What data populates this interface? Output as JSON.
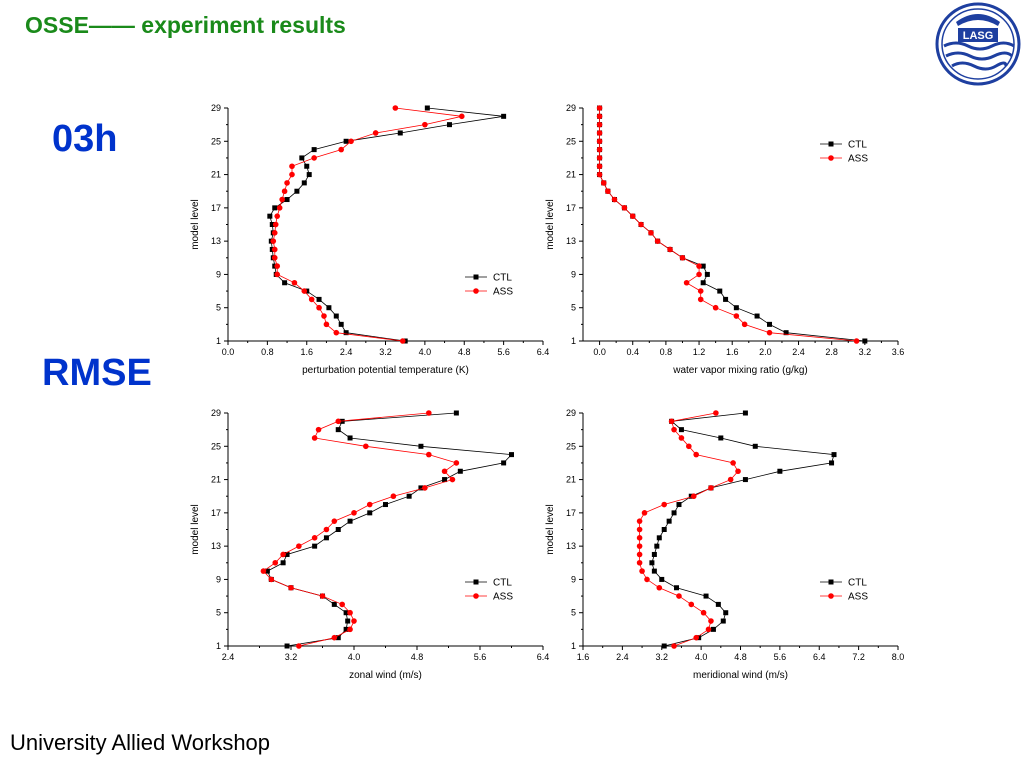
{
  "header": {
    "title": "OSSE—— experiment results"
  },
  "labels": {
    "time": "03h",
    "metric": "RMSE"
  },
  "footer": {
    "text": "University Allied Workshop"
  },
  "logo": {
    "text": "LASG"
  },
  "colors": {
    "title": "#1a8a1a",
    "label": "#0033cc",
    "ctl": "#000000",
    "ass": "#ff0000"
  },
  "chart_data": [
    {
      "type": "line",
      "xlabel": "perturbation potential temperature (K)",
      "ylabel": "model level",
      "xlim": [
        0.0,
        6.4
      ],
      "xticks": [
        "0.0",
        "0.8",
        "1.6",
        "2.4",
        "3.2",
        "4.0",
        "4.8",
        "5.6",
        "6.4"
      ],
      "ylim": [
        1,
        29
      ],
      "yticks": [
        "1",
        "5",
        "9",
        "13",
        "17",
        "21",
        "25",
        "29"
      ],
      "legend": "bottom-right",
      "y": [
        1,
        2,
        3,
        4,
        5,
        6,
        7,
        8,
        9,
        10,
        11,
        12,
        13,
        14,
        15,
        16,
        17,
        18,
        19,
        20,
        21,
        22,
        23,
        24,
        25,
        26,
        27,
        28,
        29
      ],
      "series": [
        {
          "name": "CTL",
          "marker": "square",
          "color": "#000000",
          "values": [
            3.6,
            2.4,
            2.3,
            2.2,
            2.05,
            1.85,
            1.6,
            1.15,
            0.98,
            0.95,
            0.92,
            0.9,
            0.88,
            0.92,
            0.9,
            0.85,
            0.95,
            1.2,
            1.4,
            1.55,
            1.65,
            1.6,
            1.5,
            1.75,
            2.4,
            3.5,
            4.5,
            5.6,
            4.05
          ]
        },
        {
          "name": "ASS",
          "marker": "circle",
          "color": "#ff0000",
          "values": [
            3.55,
            2.2,
            2.0,
            1.95,
            1.85,
            1.7,
            1.55,
            1.35,
            1.0,
            1.0,
            0.95,
            0.95,
            0.92,
            0.95,
            0.97,
            1.0,
            1.05,
            1.1,
            1.15,
            1.2,
            1.3,
            1.3,
            1.75,
            2.3,
            2.5,
            3.0,
            4.0,
            4.75,
            3.4
          ]
        }
      ]
    },
    {
      "type": "line",
      "xlabel": "water vapor mixing ratio (g/kg)",
      "ylabel": "model level",
      "xlim": [
        -0.2,
        3.6
      ],
      "xticks": [
        "0.0",
        "0.4",
        "0.8",
        "1.2",
        "1.6",
        "2.0",
        "2.4",
        "2.8",
        "3.2",
        "3.6"
      ],
      "ylim": [
        1,
        29
      ],
      "yticks": [
        "1",
        "5",
        "9",
        "13",
        "17",
        "21",
        "25",
        "29"
      ],
      "legend": "top-right",
      "y": [
        1,
        2,
        3,
        4,
        5,
        6,
        7,
        8,
        9,
        10,
        11,
        12,
        13,
        14,
        15,
        16,
        17,
        18,
        19,
        20,
        21,
        22,
        23,
        24,
        25,
        26,
        27,
        28,
        29
      ],
      "series": [
        {
          "name": "CTL",
          "marker": "square",
          "color": "#000000",
          "values": [
            3.2,
            2.25,
            2.05,
            1.9,
            1.65,
            1.52,
            1.45,
            1.25,
            1.3,
            1.25,
            1.0,
            0.85,
            0.7,
            0.62,
            0.5,
            0.4,
            0.3,
            0.18,
            0.1,
            0.05,
            0.0,
            0.0,
            0.0,
            0.0,
            0.0,
            0.0,
            0.0,
            0.0,
            0.0
          ]
        },
        {
          "name": "ASS",
          "marker": "circle",
          "color": "#ff0000",
          "values": [
            3.1,
            2.05,
            1.75,
            1.65,
            1.4,
            1.22,
            1.22,
            1.05,
            1.2,
            1.2,
            1.0,
            0.85,
            0.7,
            0.62,
            0.5,
            0.4,
            0.3,
            0.18,
            0.1,
            0.05,
            0.0,
            0.0,
            0.0,
            0.0,
            0.0,
            0.0,
            0.0,
            0.0,
            0.0
          ]
        }
      ]
    },
    {
      "type": "line",
      "xlabel": "zonal wind (m/s)",
      "ylabel": "model level",
      "xlim": [
        2.4,
        6.4
      ],
      "xticks": [
        "2.4",
        "3.2",
        "4.0",
        "4.8",
        "5.6",
        "6.4"
      ],
      "ylim": [
        1,
        29
      ],
      "yticks": [
        "1",
        "5",
        "9",
        "13",
        "17",
        "21",
        "25",
        "29"
      ],
      "legend": "bottom-right",
      "y": [
        1,
        2,
        3,
        4,
        5,
        6,
        7,
        8,
        9,
        10,
        11,
        12,
        13,
        14,
        15,
        16,
        17,
        18,
        19,
        20,
        21,
        22,
        23,
        24,
        25,
        26,
        27,
        28,
        29
      ],
      "series": [
        {
          "name": "CTL",
          "marker": "square",
          "color": "#000000",
          "values": [
            3.15,
            3.8,
            3.9,
            3.92,
            3.9,
            3.75,
            3.6,
            3.2,
            2.95,
            2.9,
            3.1,
            3.15,
            3.5,
            3.65,
            3.8,
            3.95,
            4.2,
            4.4,
            4.7,
            4.85,
            5.15,
            5.35,
            5.9,
            6.0,
            4.85,
            3.95,
            3.8,
            3.85,
            5.3
          ]
        },
        {
          "name": "ASS",
          "marker": "circle",
          "color": "#ff0000",
          "values": [
            3.3,
            3.75,
            3.95,
            4.0,
            3.95,
            3.85,
            3.6,
            3.2,
            2.95,
            2.85,
            3.0,
            3.1,
            3.3,
            3.5,
            3.65,
            3.75,
            4.0,
            4.2,
            4.5,
            4.9,
            5.25,
            5.15,
            5.3,
            4.95,
            4.15,
            3.5,
            3.55,
            3.8,
            4.95
          ]
        }
      ]
    },
    {
      "type": "line",
      "xlabel": "meridional wind (m/s)",
      "ylabel": "model level",
      "xlim": [
        1.6,
        8.0
      ],
      "xticks": [
        "1.6",
        "2.4",
        "3.2",
        "4.0",
        "4.8",
        "5.6",
        "6.4",
        "7.2",
        "8.0"
      ],
      "ylim": [
        1,
        29
      ],
      "yticks": [
        "1",
        "5",
        "9",
        "13",
        "17",
        "21",
        "25",
        "29"
      ],
      "legend": "bottom-right",
      "y": [
        1,
        2,
        3,
        4,
        5,
        6,
        7,
        8,
        9,
        10,
        11,
        12,
        13,
        14,
        15,
        16,
        17,
        18,
        19,
        20,
        21,
        22,
        23,
        24,
        25,
        26,
        27,
        28,
        29
      ],
      "series": [
        {
          "name": "CTL",
          "marker": "square",
          "color": "#000000",
          "values": [
            3.25,
            3.95,
            4.25,
            4.45,
            4.5,
            4.35,
            4.1,
            3.5,
            3.2,
            3.05,
            3.0,
            3.05,
            3.1,
            3.15,
            3.25,
            3.35,
            3.45,
            3.55,
            3.8,
            4.2,
            4.9,
            5.6,
            6.65,
            6.7,
            5.1,
            4.4,
            3.6,
            3.4,
            4.9
          ]
        },
        {
          "name": "ASS",
          "marker": "circle",
          "color": "#ff0000",
          "values": [
            3.45,
            3.9,
            4.15,
            4.2,
            4.05,
            3.8,
            3.55,
            3.15,
            2.9,
            2.8,
            2.75,
            2.75,
            2.75,
            2.75,
            2.75,
            2.75,
            2.85,
            3.25,
            3.85,
            4.2,
            4.6,
            4.75,
            4.65,
            3.9,
            3.75,
            3.6,
            3.45,
            3.4,
            4.3
          ]
        }
      ]
    }
  ]
}
